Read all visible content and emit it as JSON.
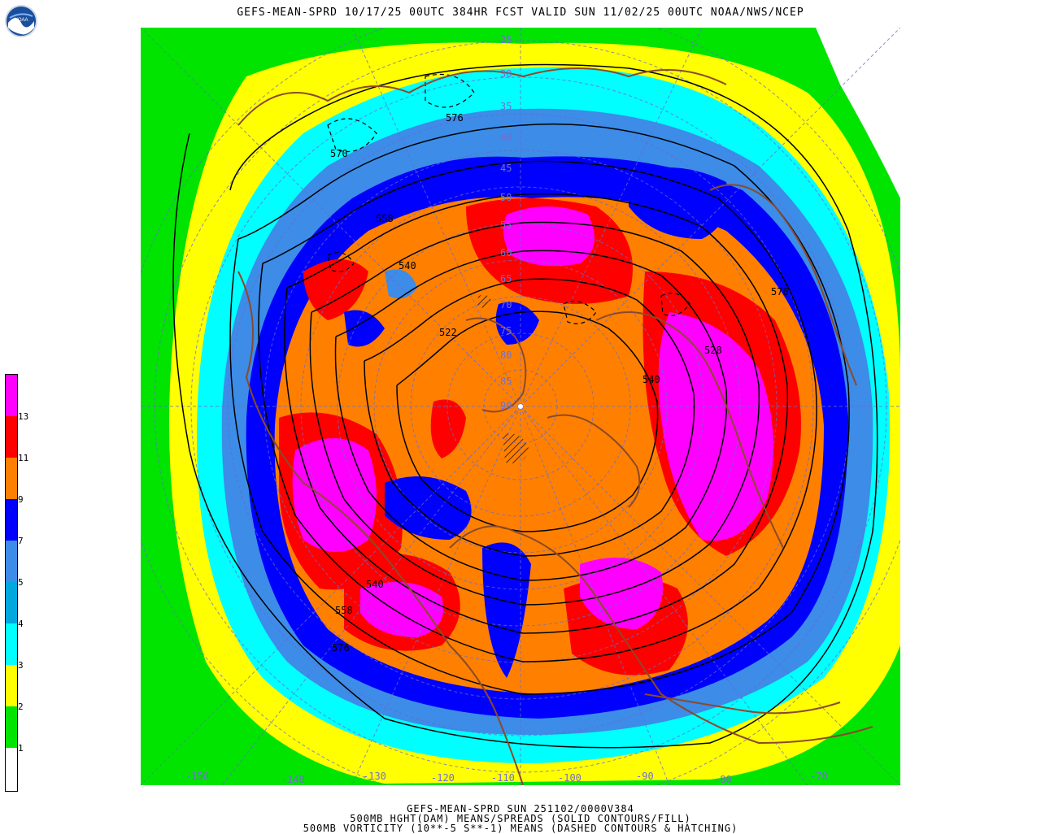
{
  "header": {
    "title": "GEFS-MEAN-SPRD 10/17/25 00UTC 384HR FCST VALID SUN 11/02/25 00UTC NOAA/NWS/NCEP",
    "logo_text": "NOAA"
  },
  "legend": {
    "labels": [
      "1",
      "2",
      "3",
      "4",
      "5",
      "7",
      "9",
      "11",
      "13"
    ],
    "colors": [
      "#ffffff",
      "#00e400",
      "#ffff00",
      "#00ffff",
      "#00a8e0",
      "#3c8ce8",
      "#0000ff",
      "#ff8000",
      "#ff0000",
      "#ff00ff"
    ]
  },
  "map": {
    "latitude_labels": [
      "25",
      "30",
      "35",
      "40",
      "45",
      "50",
      "55",
      "60",
      "65",
      "70",
      "75",
      "80",
      "85",
      "90"
    ],
    "longitude_labels": [
      "-150",
      "-140",
      "-130",
      "-120",
      "-110",
      "-100",
      "-90",
      "-80",
      "-70"
    ],
    "contour_labels": [
      "576",
      "570",
      "558",
      "540",
      "522",
      "576",
      "528",
      "540",
      "540",
      "558",
      "576"
    ],
    "colors": {
      "green": "#00e400",
      "yellow": "#ffff00",
      "cyan": "#00ffff",
      "lightblue": "#3c8ce8",
      "blue": "#0000ff",
      "orange": "#ff8000",
      "red": "#ff0000",
      "magenta": "#ff00ff",
      "coast": "#8b4a2a",
      "grid": "#6a6acd"
    }
  },
  "footer": {
    "line1": "GEFS-MEAN-SPRD SUN 251102/0000V384",
    "line2": "500MB HGHT(DAM) MEANS/SPREADS (SOLID CONTOURS/FILL)",
    "line3": "500MB VORTICITY (10**-5 S**-1) MEANS (DASHED CONTOURS & HATCHING)"
  }
}
